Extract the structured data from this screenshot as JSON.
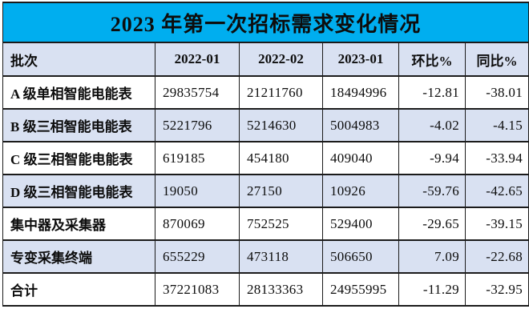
{
  "title": "2023 年第一次招标需求变化情况",
  "colors": {
    "title_bg": "#00AEEF",
    "band_bg": "#D9E1F2",
    "row_bg": "#FFFFFF",
    "border": "#1B1B1B",
    "text": "#0D0D0D"
  },
  "table": {
    "headers": [
      "批次",
      "2022-01",
      "2022-02",
      "2023-01",
      "环比%",
      "同比%"
    ],
    "rows": [
      [
        "A 级单相智能电能表",
        "29835754",
        "21211760",
        "18494996",
        "-12.81",
        "-38.01"
      ],
      [
        "B 级三相智能电能表",
        "5221796",
        "5214630",
        "5004983",
        "-4.02",
        "-4.15"
      ],
      [
        "C 级三相智能电能表",
        "619185",
        "454180",
        "409040",
        "-9.94",
        "-33.94"
      ],
      [
        "D 级三相智能电能表",
        "19050",
        "27150",
        "10926",
        "-59.76",
        "-42.65"
      ],
      [
        "集中器及采集器",
        "870069",
        "752525",
        "529400",
        "-29.65",
        "-39.15"
      ],
      [
        "专变采集终端",
        "655229",
        "473118",
        "506650",
        "7.09",
        "-22.68"
      ],
      [
        "合计",
        "37221083",
        "28133363",
        "24955995",
        "-11.29",
        "-32.95"
      ]
    ]
  },
  "chart_data": {
    "type": "table",
    "title": "2023 年第一次招标需求变化情况",
    "columns": [
      "批次",
      "2022-01",
      "2022-02",
      "2023-01",
      "环比%",
      "同比%"
    ],
    "rows": [
      [
        "A 级单相智能电能表",
        29835754,
        21211760,
        18494996,
        -12.81,
        -38.01
      ],
      [
        "B 级三相智能电能表",
        5221796,
        5214630,
        5004983,
        -4.02,
        -4.15
      ],
      [
        "C 级三相智能电能表",
        619185,
        454180,
        409040,
        -9.94,
        -33.94
      ],
      [
        "D 级三相智能电能表",
        19050,
        27150,
        10926,
        -59.76,
        -42.65
      ],
      [
        "集中器及采集器",
        870069,
        752525,
        529400,
        -29.65,
        -39.15
      ],
      [
        "专变采集终端",
        655229,
        473118,
        506650,
        7.09,
        -22.68
      ],
      [
        "合计",
        37221083,
        28133363,
        24955995,
        -11.29,
        -32.95
      ]
    ]
  }
}
